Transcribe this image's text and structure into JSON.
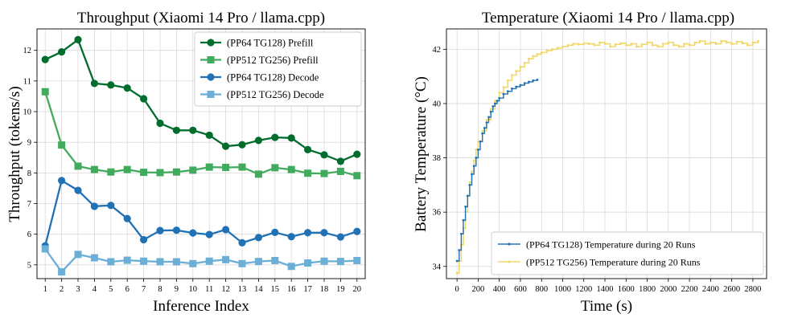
{
  "colors": {
    "pp64_prefill": "#006d2c",
    "pp512_prefill": "#41ab5d",
    "pp64_decode": "#2171b5",
    "pp512_decode": "#6baed6",
    "temp_pp64": "#2171b5",
    "temp_pp512": "#f1d86a",
    "grid": "#d9d9d9"
  },
  "chart_data": [
    {
      "type": "line",
      "title": "Throughput (Xiaomi 14 Pro / llama.cpp)",
      "xlabel": "Inference Index",
      "ylabel": "Throughput (tokens/s)",
      "x": [
        1,
        2,
        3,
        4,
        5,
        6,
        7,
        8,
        9,
        10,
        11,
        12,
        13,
        14,
        15,
        16,
        17,
        18,
        19,
        20
      ],
      "xticks": [
        "1",
        "2",
        "3",
        "4",
        "5",
        "6",
        "7",
        "8",
        "9",
        "10",
        "11",
        "12",
        "13",
        "14",
        "15",
        "16",
        "17",
        "18",
        "19",
        "20"
      ],
      "yticks": [
        5,
        6,
        7,
        8,
        9,
        10,
        11,
        12
      ],
      "ylim": [
        4.55,
        12.7
      ],
      "grid": true,
      "legend": "top-right",
      "series": [
        {
          "name": "(PP64   TG128) Prefill",
          "marker": "circle",
          "color_key": "pp64_prefill",
          "values": [
            11.7,
            11.95,
            12.35,
            10.92,
            10.87,
            10.77,
            10.42,
            9.62,
            9.39,
            9.39,
            9.23,
            8.87,
            8.92,
            9.06,
            9.16,
            9.14,
            8.76,
            8.59,
            8.38,
            8.61
          ]
        },
        {
          "name": "(PP512 TG256) Prefill",
          "marker": "square",
          "color_key": "pp512_prefill",
          "values": [
            10.65,
            8.91,
            8.22,
            8.11,
            8.03,
            8.11,
            8.02,
            8.01,
            8.03,
            8.09,
            8.19,
            8.18,
            8.19,
            7.96,
            8.17,
            8.11,
            7.99,
            7.98,
            8.05,
            7.91
          ]
        },
        {
          "name": "(PP64   TG128) Decode",
          "marker": "circle",
          "color_key": "pp64_decode",
          "values": [
            5.62,
            7.75,
            7.43,
            6.91,
            6.94,
            6.51,
            5.82,
            6.12,
            6.13,
            6.04,
            5.99,
            6.15,
            5.72,
            5.89,
            6.06,
            5.92,
            6.05,
            6.05,
            5.91,
            6.09
          ]
        },
        {
          "name": "(PP512 TG256) Decode",
          "marker": "square",
          "color_key": "pp512_decode",
          "values": [
            5.52,
            4.77,
            5.34,
            5.23,
            5.1,
            5.15,
            5.12,
            5.1,
            5.1,
            5.04,
            5.12,
            5.17,
            5.04,
            5.11,
            5.14,
            4.95,
            5.06,
            5.12,
            5.11,
            5.14
          ]
        }
      ]
    },
    {
      "type": "line",
      "title": "Temperature (Xiaomi 14 Pro / llama.cpp)",
      "xlabel": "Time (s)",
      "ylabel": "Battery Temperature (°C)",
      "xticks": [
        "0",
        "200",
        "400",
        "600",
        "800",
        "1000",
        "1200",
        "1400",
        "1600",
        "1800",
        "2000",
        "2200",
        "2400",
        "2600",
        "2800"
      ],
      "xtick_values": [
        0,
        200,
        400,
        600,
        800,
        1000,
        1200,
        1400,
        1600,
        1800,
        2000,
        2200,
        2400,
        2600,
        2800
      ],
      "yticks": [
        34,
        36,
        38,
        40,
        42
      ],
      "xlim": [
        -100,
        2930
      ],
      "ylim": [
        33.55,
        42.75
      ],
      "grid": true,
      "legend": "bottom-right",
      "series": [
        {
          "name": "(PP64   TG128) Temperature during 20 Runs",
          "color_key": "temp_pp64",
          "x": [
            0,
            20,
            40,
            60,
            80,
            100,
            120,
            140,
            160,
            180,
            200,
            220,
            240,
            260,
            280,
            300,
            320,
            340,
            360,
            380,
            400,
            440,
            480,
            520,
            560,
            600,
            640,
            680,
            720,
            760
          ],
          "values": [
            34.2,
            34.6,
            35.2,
            35.7,
            36.2,
            36.6,
            37.0,
            37.4,
            37.7,
            38.0,
            38.3,
            38.6,
            38.9,
            39.1,
            39.3,
            39.5,
            39.7,
            39.9,
            40.0,
            40.1,
            40.2,
            40.35,
            40.45,
            40.55,
            40.62,
            40.68,
            40.75,
            40.8,
            40.85,
            40.88
          ]
        },
        {
          "name": "(PP512 TG256) Temperature during 20 Runs",
          "color_key": "temp_pp512",
          "x": [
            0,
            20,
            40,
            60,
            80,
            100,
            120,
            140,
            160,
            180,
            200,
            240,
            280,
            320,
            360,
            400,
            440,
            480,
            520,
            560,
            600,
            640,
            680,
            720,
            760,
            800,
            850,
            900,
            950,
            1000,
            1050,
            1100,
            1150,
            1200,
            1250,
            1300,
            1350,
            1400,
            1450,
            1500,
            1550,
            1600,
            1650,
            1700,
            1750,
            1800,
            1850,
            1900,
            1950,
            2000,
            2050,
            2100,
            2150,
            2200,
            2250,
            2300,
            2350,
            2400,
            2450,
            2500,
            2550,
            2600,
            2650,
            2700,
            2750,
            2800,
            2850
          ],
          "values": [
            33.75,
            34.2,
            34.8,
            35.4,
            36.0,
            36.6,
            37.1,
            37.5,
            37.9,
            38.3,
            38.6,
            39.0,
            39.4,
            39.8,
            40.1,
            40.4,
            40.6,
            40.85,
            41.05,
            41.2,
            41.35,
            41.5,
            41.65,
            41.75,
            41.82,
            41.88,
            41.95,
            42.0,
            42.05,
            42.1,
            42.15,
            42.2,
            42.18,
            42.22,
            42.2,
            42.15,
            42.25,
            42.2,
            42.1,
            42.18,
            42.22,
            42.15,
            42.2,
            42.1,
            42.18,
            42.25,
            42.15,
            42.1,
            42.2,
            42.25,
            42.15,
            42.1,
            42.2,
            42.15,
            42.25,
            42.3,
            42.2,
            42.25,
            42.2,
            42.3,
            42.25,
            42.2,
            42.28,
            42.22,
            42.15,
            42.25,
            42.3
          ]
        }
      ]
    }
  ]
}
